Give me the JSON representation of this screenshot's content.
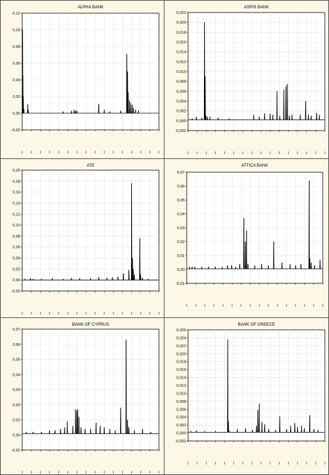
{
  "colors": {
    "panel_bg": "#fdf8e6",
    "plot_bg": "#ffffff",
    "line": "#000000",
    "grid": "#c8c8c8",
    "border": "#555555"
  },
  "chart_data": [
    {
      "type": "line",
      "title": "ALPHA BANK",
      "xlabel": "",
      "ylabel": "",
      "ylim": [
        -0.02,
        0.12
      ],
      "yticks": [
        "-0,02",
        "0,00",
        "0,02",
        "0,04",
        "0,06",
        "0,08",
        "0,10",
        "0,12"
      ],
      "xtick_count": 16,
      "grid": true,
      "series": [
        {
          "baseline": 0.0,
          "x_range": [
            0,
            1000
          ],
          "spikes": [
            [
              3,
              0.1
            ],
            [
              5,
              0.045
            ],
            [
              8,
              0.02
            ],
            [
              12,
              0.005
            ],
            [
              40,
              0.011
            ],
            [
              44,
              0.004
            ],
            [
              300,
              0.002
            ],
            [
              360,
              0.003
            ],
            [
              380,
              0.004
            ],
            [
              390,
              0.003
            ],
            [
              400,
              0.003
            ],
            [
              560,
              0.011
            ],
            [
              600,
              0.004
            ],
            [
              640,
              0.002
            ],
            [
              720,
              0.003
            ],
            [
              765,
              0.071
            ],
            [
              770,
              0.05
            ],
            [
              775,
              0.025
            ],
            [
              785,
              0.015
            ],
            [
              795,
              0.012
            ],
            [
              805,
              0.01
            ],
            [
              815,
              0.006
            ],
            [
              830,
              0.004
            ],
            [
              850,
              0.003
            ]
          ]
        }
      ]
    },
    {
      "type": "line",
      "title": "ASPIS BANK",
      "xlabel": "",
      "ylabel": "",
      "ylim": [
        -0.002,
        0.022
      ],
      "yticks": [
        "-0,002",
        "0,000",
        "0,002",
        "0,004",
        "0,006",
        "0,008",
        "0,010",
        "0,012",
        "0,014",
        "0,016",
        "0,018",
        "0,020",
        "0,022"
      ],
      "xtick_count": 16,
      "grid": true,
      "series": [
        {
          "baseline": 0.0002,
          "x_range": [
            0,
            1000
          ],
          "spikes": [
            [
              30,
              0.0005
            ],
            [
              60,
              0.0008
            ],
            [
              100,
              0.0006
            ],
            [
              120,
              0.02
            ],
            [
              125,
              0.009
            ],
            [
              130,
              0.001
            ],
            [
              140,
              0.0008
            ],
            [
              160,
              0.0008
            ],
            [
              220,
              0.0006
            ],
            [
              300,
              0.0004
            ],
            [
              480,
              0.0012
            ],
            [
              520,
              0.0008
            ],
            [
              560,
              0.0015
            ],
            [
              600,
              0.0014
            ],
            [
              620,
              0.0012
            ],
            [
              650,
              0.006
            ],
            [
              670,
              0.001
            ],
            [
              700,
              0.0063
            ],
            [
              715,
              0.007
            ],
            [
              725,
              0.0075
            ],
            [
              740,
              0.001
            ],
            [
              760,
              0.0012
            ],
            [
              820,
              0.0012
            ],
            [
              860,
              0.004
            ],
            [
              880,
              0.0012
            ],
            [
              900,
              0.001
            ],
            [
              940,
              0.0016
            ],
            [
              960,
              0.0012
            ]
          ]
        }
      ]
    },
    {
      "type": "line",
      "title": "ATE",
      "xlabel": "",
      "ylabel": "",
      "ylim": [
        -0.02,
        0.2
      ],
      "yticks": [
        "-0,02",
        "0,00",
        "0,02",
        "0,04",
        "0,06",
        "0,08",
        "0,10",
        "0,12",
        "0,14",
        "0,16",
        "0,18",
        "0,20"
      ],
      "xtick_count": 16,
      "grid": true,
      "series": [
        {
          "baseline": 0.0,
          "x_range": [
            0,
            1000
          ],
          "spikes": [
            [
              20,
              0.002
            ],
            [
              60,
              0.003
            ],
            [
              80,
              0.002
            ],
            [
              140,
              0.002
            ],
            [
              220,
              0.003
            ],
            [
              300,
              0.002
            ],
            [
              360,
              0.004
            ],
            [
              420,
              0.003
            ],
            [
              500,
              0.003
            ],
            [
              560,
              0.005
            ],
            [
              620,
              0.004
            ],
            [
              660,
              0.005
            ],
            [
              700,
              0.006
            ],
            [
              740,
              0.012
            ],
            [
              780,
              0.018
            ],
            [
              800,
              0.176
            ],
            [
              806,
              0.04
            ],
            [
              812,
              0.02
            ],
            [
              820,
              0.01
            ],
            [
              860,
              0.076
            ],
            [
              866,
              0.01
            ],
            [
              880,
              0.004
            ],
            [
              920,
              0.002
            ]
          ]
        }
      ]
    },
    {
      "type": "line",
      "title": "ATTICA BANK",
      "xlabel": "",
      "ylabel": "",
      "ylim": [
        -0.01,
        0.07
      ],
      "yticks": [
        "-0,01",
        "0,00",
        "0,01",
        "0,02",
        "0,03",
        "0,04",
        "0,05",
        "0,06",
        "0,07"
      ],
      "xtick_count": 16,
      "grid": true,
      "series": [
        {
          "baseline": 0.0005,
          "x_range": [
            0,
            1000
          ],
          "spikes": [
            [
              20,
              0.002
            ],
            [
              40,
              0.002
            ],
            [
              60,
              0.002
            ],
            [
              110,
              0.002
            ],
            [
              160,
              0.002
            ],
            [
              210,
              0.002
            ],
            [
              260,
              0.002
            ],
            [
              300,
              0.003
            ],
            [
              330,
              0.003
            ],
            [
              360,
              0.002
            ],
            [
              390,
              0.004
            ],
            [
              420,
              0.037
            ],
            [
              430,
              0.02
            ],
            [
              440,
              0.028
            ],
            [
              450,
              0.004
            ],
            [
              500,
              0.003
            ],
            [
              550,
              0.004
            ],
            [
              600,
              0.003
            ],
            [
              640,
              0.02
            ],
            [
              700,
              0.005
            ],
            [
              760,
              0.004
            ],
            [
              800,
              0.003
            ],
            [
              840,
              0.004
            ],
            [
              900,
              0.064
            ],
            [
              905,
              0.008
            ],
            [
              915,
              0.005
            ],
            [
              940,
              0.003
            ],
            [
              980,
              0.007
            ]
          ]
        }
      ]
    },
    {
      "type": "line",
      "title": "BANK OF CYPRUS",
      "xlabel": "",
      "ylabel": "",
      "ylim": [
        -0.01,
        0.07
      ],
      "yticks": [
        "-0,01",
        "0,00",
        "0,01",
        "0,02",
        "0,03",
        "0,04",
        "0,05",
        "0,06",
        "0,07"
      ],
      "xtick_count": 16,
      "grid": true,
      "series": [
        {
          "baseline": 0.0008,
          "x_range": [
            0,
            1000
          ],
          "spikes": [
            [
              30,
              0.002
            ],
            [
              80,
              0.002
            ],
            [
              140,
              0.002
            ],
            [
              200,
              0.003
            ],
            [
              240,
              0.003
            ],
            [
              280,
              0.004
            ],
            [
              310,
              0.005
            ],
            [
              330,
              0.009
            ],
            [
              370,
              0.006
            ],
            [
              390,
              0.017
            ],
            [
              400,
              0.016
            ],
            [
              405,
              0.017
            ],
            [
              415,
              0.012
            ],
            [
              430,
              0.005
            ],
            [
              460,
              0.004
            ],
            [
              500,
              0.004
            ],
            [
              540,
              0.008
            ],
            [
              570,
              0.006
            ],
            [
              600,
              0.005
            ],
            [
              640,
              0.004
            ],
            [
              680,
              0.003
            ],
            [
              720,
              0.018
            ],
            [
              760,
              0.063
            ],
            [
              770,
              0.01
            ],
            [
              780,
              0.005
            ],
            [
              820,
              0.003
            ],
            [
              880,
              0.004
            ],
            [
              940,
              0.002
            ]
          ]
        }
      ]
    },
    {
      "type": "line",
      "title": "BANK OF GREECE",
      "xlabel": "",
      "ylabel": "",
      "ylim": [
        -0.002,
        0.026
      ],
      "yticks": [
        "-0,002",
        "0,000",
        "0,002",
        "0,004",
        "0,006",
        "0,008",
        "0,010",
        "0,012",
        "0,014",
        "0,016",
        "0,018",
        "0,020",
        "0,022",
        "0,024",
        "0,026"
      ],
      "xtick_count": 16,
      "grid": true,
      "series": [
        {
          "baseline": 0.0002,
          "x_range": [
            0,
            1000
          ],
          "spikes": [
            [
              20,
              0.0005
            ],
            [
              60,
              0.0006
            ],
            [
              120,
              0.0004
            ],
            [
              200,
              0.0005
            ],
            [
              290,
              0.0236
            ],
            [
              295,
              0.003
            ],
            [
              300,
              0.0006
            ],
            [
              360,
              0.001
            ],
            [
              420,
              0.0012
            ],
            [
              470,
              0.0008
            ],
            [
              500,
              0.0018
            ],
            [
              510,
              0.0058
            ],
            [
              520,
              0.0074
            ],
            [
              540,
              0.0028
            ],
            [
              560,
              0.0022
            ],
            [
              590,
              0.001
            ],
            [
              640,
              0.0008
            ],
            [
              670,
              0.0042
            ],
            [
              720,
              0.001
            ],
            [
              750,
              0.0018
            ],
            [
              780,
              0.0025
            ],
            [
              800,
              0.0015
            ],
            [
              830,
              0.0018
            ],
            [
              850,
              0.0012
            ],
            [
              890,
              0.0045
            ],
            [
              920,
              0.001
            ],
            [
              950,
              0.0008
            ]
          ]
        }
      ]
    }
  ]
}
